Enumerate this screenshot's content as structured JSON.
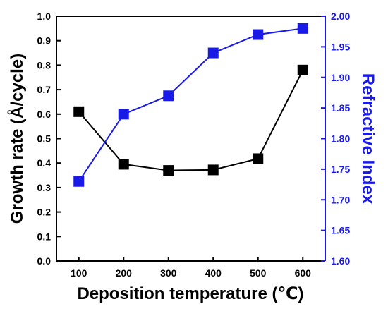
{
  "chart_data": {
    "type": "line",
    "x": [
      100,
      200,
      300,
      400,
      500,
      600
    ],
    "xticks": [
      100,
      200,
      300,
      400,
      500,
      600
    ],
    "xlim": [
      50,
      650
    ],
    "xlabel": "Deposition temperature (℃)",
    "ylabel": "Growth rate (Å/cycle)",
    "ylabel_right": "Refractive Index",
    "ylim": [
      0.0,
      1.0
    ],
    "yticks": [
      "0.0",
      "0.1",
      "0.2",
      "0.3",
      "0.4",
      "0.5",
      "0.6",
      "0.7",
      "0.8",
      "0.9",
      "1.0"
    ],
    "ylim_right": [
      1.6,
      2.0
    ],
    "yticks_right": [
      "1.60",
      "1.65",
      "1.70",
      "1.75",
      "1.80",
      "1.85",
      "1.90",
      "1.95",
      "2.00"
    ],
    "grid": false,
    "legend": "none",
    "series": [
      {
        "axis": "left",
        "color": "#000000",
        "marker": "square",
        "values": [
          0.61,
          0.395,
          0.37,
          0.372,
          0.418,
          0.78
        ]
      },
      {
        "axis": "right",
        "color": "#1a1ae6",
        "marker": "square",
        "values": [
          1.73,
          1.84,
          1.87,
          1.94,
          1.97,
          1.98
        ]
      }
    ]
  }
}
